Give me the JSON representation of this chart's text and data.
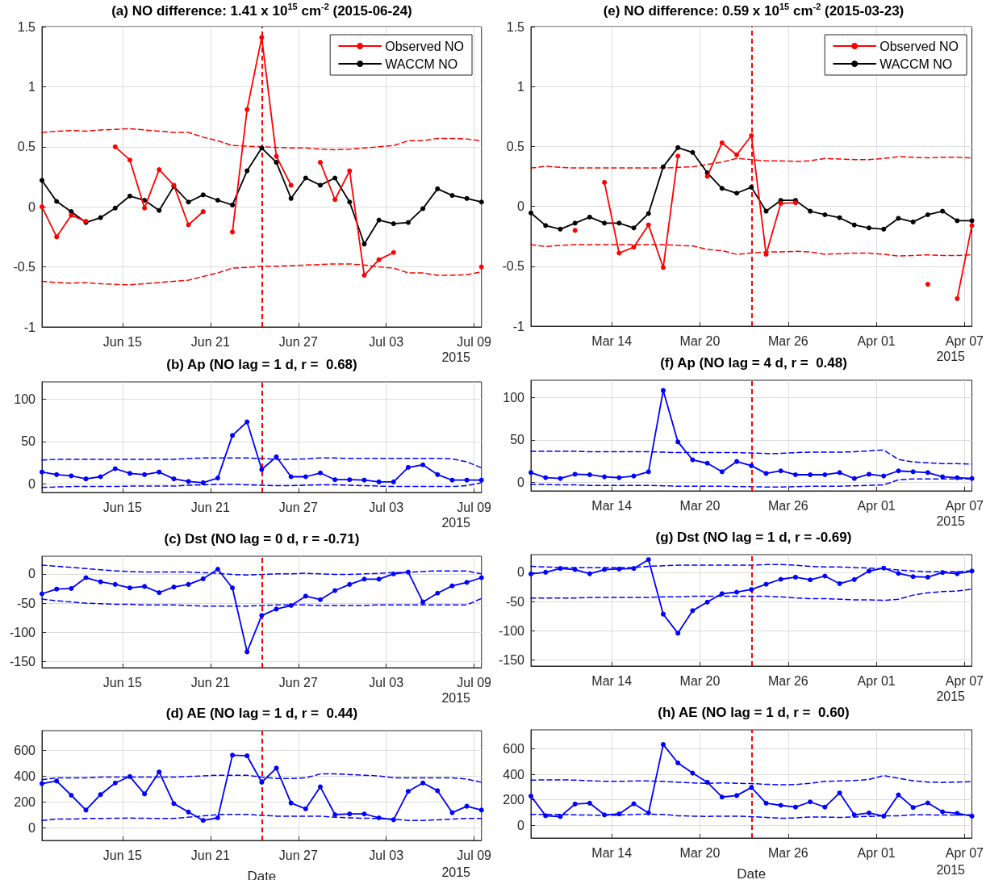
{
  "chart_data": [
    {
      "type": "line",
      "title": "(a) NO difference: 1.41 x 10$^{15}$ cm$^{-2}$ (2015-06-24)",
      "annotations": [
        "2015"
      ],
      "x": [
        "2015-06-09T12:00",
        "2015-06-10T12:00",
        "2015-06-11T12:00",
        "2015-06-12T12:00",
        "2015-06-13T12:00",
        "2015-06-14T12:00",
        "2015-06-15T12:00",
        "2015-06-16T12:00",
        "2015-06-17T12:00",
        "2015-06-18T12:00",
        "2015-06-19T12:00",
        "2015-06-20T12:00",
        "2015-06-21T12:00",
        "2015-06-22T12:00",
        "2015-06-23T12:00",
        "2015-06-24T12:00",
        "2015-06-25T12:00",
        "2015-06-26T12:00",
        "2015-06-27T12:00",
        "2015-06-28T12:00",
        "2015-06-29T12:00",
        "2015-06-30T12:00",
        "2015-07-01T12:00",
        "2015-07-02T12:00",
        "2015-07-03T12:00",
        "2015-07-04T12:00",
        "2015-07-05T12:00",
        "2015-07-06T12:00",
        "2015-07-07T12:00",
        "2015-07-08T12:00",
        "2015-07-09T12:00"
      ],
      "xlim": [
        "2015-06-09T12:00",
        "2015-07-09T12:00"
      ],
      "xticks": [
        {
          "value": "2015-06-15",
          "label": "Jun 15"
        },
        {
          "value": "2015-06-21",
          "label": "Jun 21"
        },
        {
          "value": "2015-06-27",
          "label": "Jun 27"
        },
        {
          "value": "2015-07-03",
          "label": "Jul 03"
        },
        {
          "value": "2015-07-09",
          "label": "Jul 09"
        }
      ],
      "ylim": [
        -1,
        1.5
      ],
      "yticks": [
        -1,
        -0.5,
        0,
        0.5,
        1,
        1.5
      ],
      "grid": true,
      "legend": "top right",
      "marker": "circle",
      "line_style": "solid",
      "ref_lines": [
        {
          "axis": "x",
          "value": "2015-06-24T12:00",
          "color": "#ff0000",
          "line_style": "dashed"
        }
      ],
      "series": [
        {
          "name": "Observed NO",
          "color": "#ff0000",
          "values": [
            0,
            -0.25,
            -0.07,
            -0.12,
            null,
            0.5,
            0.39,
            -0.01,
            0.31,
            0.18,
            -0.15,
            -0.04,
            null,
            -0.21,
            0.81,
            1.41,
            0.42,
            0.18,
            null,
            0.37,
            0.06,
            0.3,
            -0.57,
            -0.44,
            -0.38,
            null,
            null,
            null,
            null,
            null,
            -0.5
          ]
        },
        {
          "name": "WACCM NO",
          "color": "#000000",
          "values": [
            0.22,
            0.045,
            -0.04,
            -0.13,
            -0.09,
            -0.01,
            0.09,
            0.055,
            -0.03,
            0.17,
            0.04,
            0.1,
            0.055,
            0.015,
            0.3,
            0.49,
            0.37,
            0.07,
            0.24,
            0.18,
            0.24,
            0.04,
            -0.31,
            -0.11,
            -0.14,
            -0.13,
            -0.015,
            0.15,
            0.095,
            0.07,
            0.04
          ]
        },
        {
          "color": "#ff0000",
          "marker": "none",
          "line_style": "dashed",
          "values": [
            0.62,
            0.63,
            0.635,
            0.63,
            0.64,
            0.645,
            0.65,
            0.64,
            0.63,
            0.62,
            0.62,
            0.58,
            0.55,
            0.51,
            0.505,
            0.5,
            0.495,
            0.49,
            0.49,
            0.48,
            0.475,
            0.48,
            0.49,
            0.5,
            0.51,
            0.55,
            0.55,
            0.57,
            0.57,
            0.565,
            0.55
          ]
        },
        {
          "color": "#ff0000",
          "marker": "none",
          "line_style": "dashed",
          "values": [
            -0.62,
            -0.63,
            -0.635,
            -0.63,
            -0.64,
            -0.645,
            -0.65,
            -0.64,
            -0.63,
            -0.62,
            -0.61,
            -0.58,
            -0.55,
            -0.51,
            -0.505,
            -0.495,
            -0.495,
            -0.49,
            -0.485,
            -0.48,
            -0.475,
            -0.475,
            -0.485,
            -0.5,
            -0.51,
            -0.55,
            -0.55,
            -0.57,
            -0.57,
            -0.565,
            -0.54
          ]
        }
      ]
    },
    {
      "type": "line",
      "title": "(e) NO difference: 0.59 x 10$^{15}$ cm$^{-2}$ (2015-03-23)",
      "annotations": [
        "2015"
      ],
      "x": [
        "2015-03-08T12:00",
        "2015-03-09T12:00",
        "2015-03-10T12:00",
        "2015-03-11T12:00",
        "2015-03-12T12:00",
        "2015-03-13T12:00",
        "2015-03-14T12:00",
        "2015-03-15T12:00",
        "2015-03-16T12:00",
        "2015-03-17T12:00",
        "2015-03-18T12:00",
        "2015-03-19T12:00",
        "2015-03-20T12:00",
        "2015-03-21T12:00",
        "2015-03-22T12:00",
        "2015-03-23T12:00",
        "2015-03-24T12:00",
        "2015-03-25T12:00",
        "2015-03-26T12:00",
        "2015-03-27T12:00",
        "2015-03-28T12:00",
        "2015-03-29T12:00",
        "2015-03-30T12:00",
        "2015-03-31T12:00",
        "2015-04-01T12:00",
        "2015-04-02T12:00",
        "2015-04-03T12:00",
        "2015-04-04T12:00",
        "2015-04-05T12:00",
        "2015-04-06T12:00",
        "2015-04-07T12:00"
      ],
      "xlim": [
        "2015-03-08T12:00",
        "2015-04-07T12:00"
      ],
      "xticks": [
        {
          "value": "2015-03-14",
          "label": "Mar 14"
        },
        {
          "value": "2015-03-20",
          "label": "Mar 20"
        },
        {
          "value": "2015-03-26",
          "label": "Mar 26"
        },
        {
          "value": "2015-04-01",
          "label": "Apr 01"
        },
        {
          "value": "2015-04-07",
          "label": "Apr 07"
        }
      ],
      "ylim": [
        -1,
        1.5
      ],
      "yticks": [
        -1,
        -0.5,
        0,
        0.5,
        1,
        1.5
      ],
      "grid": true,
      "legend": "top right",
      "marker": "circle",
      "line_style": "solid",
      "ref_lines": [
        {
          "axis": "x",
          "value": "2015-03-23T12:00",
          "color": "#ff0000",
          "line_style": "dashed"
        }
      ],
      "series": [
        {
          "name": "Observed NO",
          "color": "#ff0000",
          "values": [
            null,
            null,
            null,
            -0.2,
            null,
            0.2,
            -0.39,
            -0.34,
            -0.155,
            -0.51,
            0.42,
            null,
            0.25,
            0.53,
            0.43,
            0.59,
            -0.4,
            0.025,
            0.03,
            null,
            null,
            null,
            null,
            null,
            null,
            null,
            null,
            -0.65,
            null,
            -0.77,
            -0.16
          ]
        },
        {
          "name": "WACCM NO",
          "color": "#000000",
          "values": [
            -0.055,
            -0.16,
            -0.19,
            -0.14,
            -0.09,
            -0.14,
            -0.14,
            -0.18,
            -0.06,
            0.33,
            0.49,
            0.45,
            0.28,
            0.15,
            0.11,
            0.16,
            -0.04,
            0.05,
            0.05,
            -0.04,
            -0.07,
            -0.095,
            -0.155,
            -0.18,
            -0.19,
            -0.1,
            -0.13,
            -0.07,
            -0.04,
            -0.12,
            -0.12
          ]
        },
        {
          "color": "#ff0000",
          "marker": "none",
          "line_style": "dashed",
          "values": [
            0.32,
            0.335,
            0.325,
            0.32,
            0.32,
            0.32,
            0.32,
            0.32,
            0.32,
            0.32,
            0.325,
            0.33,
            0.35,
            0.37,
            0.4,
            0.39,
            0.38,
            0.38,
            0.375,
            0.38,
            0.4,
            0.395,
            0.39,
            0.39,
            0.4,
            0.415,
            0.41,
            0.405,
            0.41,
            0.41,
            0.405
          ]
        },
        {
          "color": "#ff0000",
          "marker": "none",
          "line_style": "dashed",
          "values": [
            -0.32,
            -0.335,
            -0.325,
            -0.32,
            -0.32,
            -0.32,
            -0.32,
            -0.32,
            -0.32,
            -0.32,
            -0.325,
            -0.33,
            -0.36,
            -0.37,
            -0.4,
            -0.39,
            -0.38,
            -0.38,
            -0.375,
            -0.38,
            -0.4,
            -0.395,
            -0.39,
            -0.39,
            -0.4,
            -0.415,
            -0.41,
            -0.405,
            -0.41,
            -0.41,
            -0.405
          ]
        }
      ]
    },
    {
      "type": "line",
      "title": "(b) Ap (NO lag = 1 d, r =  0.68)",
      "annotations": [
        "2015"
      ],
      "x": [
        "2015-06-09T12:00",
        "2015-06-10T12:00",
        "2015-06-11T12:00",
        "2015-06-12T12:00",
        "2015-06-13T12:00",
        "2015-06-14T12:00",
        "2015-06-15T12:00",
        "2015-06-16T12:00",
        "2015-06-17T12:00",
        "2015-06-18T12:00",
        "2015-06-19T12:00",
        "2015-06-20T12:00",
        "2015-06-21T12:00",
        "2015-06-22T12:00",
        "2015-06-23T12:00",
        "2015-06-24T12:00",
        "2015-06-25T12:00",
        "2015-06-26T12:00",
        "2015-06-27T12:00",
        "2015-06-28T12:00",
        "2015-06-29T12:00",
        "2015-06-30T12:00",
        "2015-07-01T12:00",
        "2015-07-02T12:00",
        "2015-07-03T12:00",
        "2015-07-04T12:00",
        "2015-07-05T12:00",
        "2015-07-06T12:00",
        "2015-07-07T12:00",
        "2015-07-08T12:00",
        "2015-07-09T12:00"
      ],
      "xlim": [
        "2015-06-09T12:00",
        "2015-07-09T12:00"
      ],
      "xticks": [
        {
          "value": "2015-06-15",
          "label": "Jun 15"
        },
        {
          "value": "2015-06-21",
          "label": "Jun 21"
        },
        {
          "value": "2015-06-27",
          "label": "Jun 27"
        },
        {
          "value": "2015-07-03",
          "label": "Jul 03"
        },
        {
          "value": "2015-07-09",
          "label": "Jul 09"
        }
      ],
      "ylim": [
        -10,
        120
      ],
      "yticks": [
        0,
        50,
        100
      ],
      "grid": true,
      "marker": "circle",
      "line_style": "solid",
      "ref_lines": [
        {
          "axis": "x",
          "value": "2015-06-24T12:00",
          "color": "#ff0000",
          "line_style": "dashed"
        }
      ],
      "series": [
        {
          "color": "#0000ff",
          "values": [
            14,
            11,
            9.5,
            6,
            8.5,
            18,
            12.5,
            11,
            14,
            6,
            3,
            1.5,
            7,
            57,
            73,
            17,
            32,
            8.5,
            8.5,
            13,
            5,
            5,
            4.5,
            2.5,
            2.5,
            19.5,
            22.5,
            11,
            4.5,
            4.5,
            4.5
          ]
        },
        {
          "color": "#0000ff",
          "marker": "none",
          "line_style": "dashed",
          "values": [
            28,
            29,
            29,
            29,
            29,
            29,
            29,
            29,
            29,
            29,
            30,
            30.5,
            30.5,
            30.5,
            30.5,
            30,
            29,
            29,
            29.5,
            30.5,
            30.5,
            30,
            30,
            30,
            30,
            30,
            30,
            30,
            29.5,
            26,
            19
          ]
        },
        {
          "color": "#0000ff",
          "marker": "none",
          "line_style": "dashed",
          "values": [
            -4,
            -3.5,
            -3,
            -3,
            -3,
            -3,
            -2.5,
            -2.5,
            -2.5,
            -2.5,
            -1.5,
            -1,
            -0.5,
            -0.5,
            -1,
            -1.5,
            -2,
            -2,
            -1.5,
            -1,
            -1,
            -1.5,
            -2,
            -2.5,
            -3,
            -3,
            -3,
            -3,
            -3,
            -2,
            1.5
          ]
        }
      ]
    },
    {
      "type": "line",
      "title": "(f) Ap (NO lag = 4 d, r =  0.48)",
      "annotations": [
        "2015"
      ],
      "x": [
        "2015-03-08T12:00",
        "2015-03-09T12:00",
        "2015-03-10T12:00",
        "2015-03-11T12:00",
        "2015-03-12T12:00",
        "2015-03-13T12:00",
        "2015-03-14T12:00",
        "2015-03-15T12:00",
        "2015-03-16T12:00",
        "2015-03-17T12:00",
        "2015-03-18T12:00",
        "2015-03-19T12:00",
        "2015-03-20T12:00",
        "2015-03-21T12:00",
        "2015-03-22T12:00",
        "2015-03-23T12:00",
        "2015-03-24T12:00",
        "2015-03-25T12:00",
        "2015-03-26T12:00",
        "2015-03-27T12:00",
        "2015-03-28T12:00",
        "2015-03-29T12:00",
        "2015-03-30T12:00",
        "2015-03-31T12:00",
        "2015-04-01T12:00",
        "2015-04-02T12:00",
        "2015-04-03T12:00",
        "2015-04-04T12:00",
        "2015-04-05T12:00",
        "2015-04-06T12:00",
        "2015-04-07T12:00"
      ],
      "xlim": [
        "2015-03-08T12:00",
        "2015-04-07T12:00"
      ],
      "xticks": [
        {
          "value": "2015-03-14",
          "label": "Mar 14"
        },
        {
          "value": "2015-03-20",
          "label": "Mar 20"
        },
        {
          "value": "2015-03-26",
          "label": "Mar 26"
        },
        {
          "value": "2015-04-01",
          "label": "Apr 01"
        },
        {
          "value": "2015-04-07",
          "label": "Apr 07"
        }
      ],
      "ylim": [
        -10,
        120
      ],
      "yticks": [
        0,
        50,
        100
      ],
      "grid": true,
      "marker": "circle",
      "line_style": "solid",
      "ref_lines": [
        {
          "axis": "x",
          "value": "2015-03-23T12:00",
          "color": "#ff0000",
          "line_style": "dashed"
        }
      ],
      "series": [
        {
          "color": "#0000ff",
          "values": [
            11.5,
            5.5,
            4.5,
            9.5,
            9,
            6.5,
            5.5,
            7.5,
            12.5,
            108,
            47.5,
            26.5,
            22.5,
            12.5,
            24.5,
            19.5,
            10.5,
            13.5,
            9,
            9,
            9,
            11.5,
            4.5,
            9.5,
            7.5,
            13.5,
            12.5,
            11.5,
            6.5,
            5.5,
            4.5
          ]
        },
        {
          "color": "#0000ff",
          "marker": "none",
          "line_style": "dashed",
          "values": [
            36.5,
            36.5,
            36.5,
            36.5,
            36,
            36,
            36,
            36,
            36,
            35.5,
            35,
            35,
            35,
            35,
            35,
            34.5,
            34,
            34,
            35,
            35.5,
            35.5,
            35.5,
            36,
            37,
            38,
            27,
            24,
            23,
            22,
            22,
            21.5
          ]
        },
        {
          "color": "#0000ff",
          "marker": "none",
          "line_style": "dashed",
          "values": [
            -2.5,
            -2.5,
            -3,
            -3,
            -3.5,
            -3.5,
            -3.5,
            -3.5,
            -3.5,
            -4,
            -4.5,
            -4.5,
            -4.5,
            -4.5,
            -5,
            -5,
            -5.5,
            -5.5,
            -5,
            -4.5,
            -4.5,
            -4.5,
            -4,
            -3.5,
            -3,
            3,
            4,
            4,
            4,
            4,
            4
          ]
        }
      ]
    },
    {
      "type": "line",
      "title": "(c) Dst (NO lag = 0 d, r = -0.71)",
      "annotations": [
        "2015"
      ],
      "x": [
        "2015-06-09T12:00",
        "2015-06-10T12:00",
        "2015-06-11T12:00",
        "2015-06-12T12:00",
        "2015-06-13T12:00",
        "2015-06-14T12:00",
        "2015-06-15T12:00",
        "2015-06-16T12:00",
        "2015-06-17T12:00",
        "2015-06-18T12:00",
        "2015-06-19T12:00",
        "2015-06-20T12:00",
        "2015-06-21T12:00",
        "2015-06-22T12:00",
        "2015-06-23T12:00",
        "2015-06-24T12:00",
        "2015-06-25T12:00",
        "2015-06-26T12:00",
        "2015-06-27T12:00",
        "2015-06-28T12:00",
        "2015-06-29T12:00",
        "2015-06-30T12:00",
        "2015-07-01T12:00",
        "2015-07-02T12:00",
        "2015-07-03T12:00",
        "2015-07-04T12:00",
        "2015-07-05T12:00",
        "2015-07-06T12:00",
        "2015-07-07T12:00",
        "2015-07-08T12:00",
        "2015-07-09T12:00"
      ],
      "xlim": [
        "2015-06-09T12:00",
        "2015-07-09T12:00"
      ],
      "xticks": [
        {
          "value": "2015-06-15",
          "label": "Jun 15"
        },
        {
          "value": "2015-06-21",
          "label": "Jun 21"
        },
        {
          "value": "2015-06-27",
          "label": "Jun 27"
        },
        {
          "value": "2015-07-03",
          "label": "Jul 03"
        },
        {
          "value": "2015-07-09",
          "label": "Jul 09"
        }
      ],
      "ylim": [
        -160,
        30
      ],
      "yticks": [
        -150,
        -100,
        -50,
        0
      ],
      "grid": true,
      "marker": "circle",
      "line_style": "solid",
      "ref_lines": [
        {
          "axis": "x",
          "value": "2015-06-24T12:00",
          "color": "#ff0000",
          "line_style": "dashed"
        }
      ],
      "series": [
        {
          "color": "#0000ff",
          "values": [
            -34,
            -26,
            -25,
            -6.5,
            -13.5,
            -18,
            -24,
            -21.5,
            -32,
            -22.5,
            -18,
            -8.5,
            8,
            -24,
            -133,
            -71,
            -60,
            -54,
            -38,
            -44,
            -28.5,
            -18,
            -9,
            -9,
            0,
            3,
            -48,
            -33,
            -20.5,
            -14.5,
            -6.5
          ]
        },
        {
          "color": "#0000ff",
          "marker": "none",
          "line_style": "dashed",
          "values": [
            15,
            13,
            11,
            9,
            7,
            5,
            4,
            3,
            3,
            3,
            3,
            2,
            1,
            -1,
            -2,
            -1,
            0,
            0,
            1,
            0,
            -1,
            -1,
            0,
            1,
            2,
            3,
            4,
            5,
            5,
            5,
            0
          ]
        },
        {
          "color": "#0000ff",
          "marker": "none",
          "line_style": "dashed",
          "values": [
            -43,
            -46,
            -48,
            -50,
            -51,
            -52,
            -52,
            -53,
            -53,
            -53,
            -54,
            -55,
            -55,
            -55,
            -55,
            -54,
            -53,
            -53,
            -53,
            -54,
            -54,
            -54,
            -54,
            -53,
            -53,
            -53,
            -53,
            -53,
            -53,
            -53,
            -42
          ]
        }
      ]
    },
    {
      "type": "line",
      "title": "(g) Dst (NO lag = 1 d, r = -0.69)",
      "annotations": [
        "2015"
      ],
      "x": [
        "2015-03-08T12:00",
        "2015-03-09T12:00",
        "2015-03-10T12:00",
        "2015-03-11T12:00",
        "2015-03-12T12:00",
        "2015-03-13T12:00",
        "2015-03-14T12:00",
        "2015-03-15T12:00",
        "2015-03-16T12:00",
        "2015-03-17T12:00",
        "2015-03-18T12:00",
        "2015-03-19T12:00",
        "2015-03-20T12:00",
        "2015-03-21T12:00",
        "2015-03-22T12:00",
        "2015-03-23T12:00",
        "2015-03-24T12:00",
        "2015-03-25T12:00",
        "2015-03-26T12:00",
        "2015-03-27T12:00",
        "2015-03-28T12:00",
        "2015-03-29T12:00",
        "2015-03-30T12:00",
        "2015-03-31T12:00",
        "2015-04-01T12:00",
        "2015-04-02T12:00",
        "2015-04-03T12:00",
        "2015-04-04T12:00",
        "2015-04-05T12:00",
        "2015-04-06T12:00",
        "2015-04-07T12:00"
      ],
      "xlim": [
        "2015-03-08T12:00",
        "2015-04-07T12:00"
      ],
      "xticks": [
        {
          "value": "2015-03-14",
          "label": "Mar 14"
        },
        {
          "value": "2015-03-20",
          "label": "Mar 20"
        },
        {
          "value": "2015-03-26",
          "label": "Mar 26"
        },
        {
          "value": "2015-04-01",
          "label": "Apr 01"
        },
        {
          "value": "2015-04-07",
          "label": "Apr 07"
        }
      ],
      "ylim": [
        -160,
        30
      ],
      "yticks": [
        -150,
        -100,
        -50,
        0
      ],
      "grid": true,
      "marker": "circle",
      "line_style": "solid",
      "ref_lines": [
        {
          "axis": "x",
          "value": "2015-03-23T12:00",
          "color": "#ff0000",
          "line_style": "dashed"
        }
      ],
      "series": [
        {
          "color": "#0000ff",
          "values": [
            -3,
            0,
            6.5,
            4.5,
            -2.5,
            4.5,
            5.5,
            6.5,
            21.5,
            -71.5,
            -104,
            -65.5,
            -51,
            -36.5,
            -34,
            -29.5,
            -20.5,
            -12,
            -8.5,
            -13,
            -6.5,
            -19.5,
            -12.5,
            2,
            7,
            -2,
            -7.5,
            -8.5,
            -0.5,
            -2.5,
            2
          ]
        },
        {
          "color": "#0000ff",
          "marker": "none",
          "line_style": "dashed",
          "values": [
            10,
            9,
            8,
            8,
            8,
            8,
            8,
            8,
            10,
            11,
            12,
            12,
            12,
            12,
            12,
            12,
            13,
            13,
            12,
            10,
            9,
            9,
            8,
            7,
            6,
            4,
            2,
            1,
            1,
            1,
            2.5
          ]
        },
        {
          "color": "#0000ff",
          "marker": "none",
          "line_style": "dashed",
          "values": [
            -44,
            -44,
            -44,
            -44,
            -43,
            -43,
            -43,
            -43,
            -43,
            -42,
            -42,
            -41,
            -41,
            -41,
            -41,
            -41,
            -41,
            -42,
            -44,
            -45,
            -45,
            -46,
            -47,
            -47,
            -48,
            -46,
            -39,
            -35,
            -33,
            -32,
            -29
          ]
        }
      ]
    },
    {
      "type": "line",
      "title": "(d) AE (NO lag = 1 d, r =  0.44)",
      "xlabel": "Date",
      "annotations": [
        "2015"
      ],
      "x": [
        "2015-06-09T12:00",
        "2015-06-10T12:00",
        "2015-06-11T12:00",
        "2015-06-12T12:00",
        "2015-06-13T12:00",
        "2015-06-14T12:00",
        "2015-06-15T12:00",
        "2015-06-16T12:00",
        "2015-06-17T12:00",
        "2015-06-18T12:00",
        "2015-06-19T12:00",
        "2015-06-20T12:00",
        "2015-06-21T12:00",
        "2015-06-22T12:00",
        "2015-06-23T12:00",
        "2015-06-24T12:00",
        "2015-06-25T12:00",
        "2015-06-26T12:00",
        "2015-06-27T12:00",
        "2015-06-28T12:00",
        "2015-06-29T12:00",
        "2015-06-30T12:00",
        "2015-07-01T12:00",
        "2015-07-02T12:00",
        "2015-07-03T12:00",
        "2015-07-04T12:00",
        "2015-07-05T12:00",
        "2015-07-06T12:00",
        "2015-07-07T12:00",
        "2015-07-08T12:00",
        "2015-07-09T12:00"
      ],
      "xlim": [
        "2015-06-09T12:00",
        "2015-07-09T12:00"
      ],
      "xticks": [
        {
          "value": "2015-06-15",
          "label": "Jun 15"
        },
        {
          "value": "2015-06-21",
          "label": "Jun 21"
        },
        {
          "value": "2015-06-27",
          "label": "Jun 27"
        },
        {
          "value": "2015-07-03",
          "label": "Jul 03"
        },
        {
          "value": "2015-07-09",
          "label": "Jul 09"
        }
      ],
      "ylim": [
        -100,
        750
      ],
      "yticks": [
        0,
        200,
        400,
        600
      ],
      "grid": true,
      "marker": "circle",
      "line_style": "solid",
      "ref_lines": [
        {
          "axis": "x",
          "value": "2015-06-24T12:00",
          "color": "#ff0000",
          "line_style": "dashed"
        }
      ],
      "series": [
        {
          "color": "#0000ff",
          "values": [
            340,
            360,
            250,
            135,
            255,
            345,
            395,
            260,
            430,
            185,
            120,
            55,
            75,
            560,
            555,
            350,
            460,
            190,
            145,
            315,
            100,
            105,
            105,
            75,
            60,
            280,
            345,
            285,
            115,
            165,
            135
          ]
        },
        {
          "color": "#0000ff",
          "marker": "none",
          "line_style": "dashed",
          "values": [
            370,
            385,
            385,
            385,
            390,
            390,
            390,
            390,
            390,
            390,
            395,
            400,
            405,
            405,
            405,
            390,
            380,
            380,
            385,
            415,
            415,
            410,
            405,
            400,
            385,
            385,
            385,
            385,
            385,
            375,
            350
          ]
        },
        {
          "color": "#0000ff",
          "marker": "none",
          "line_style": "dashed",
          "values": [
            55,
            65,
            65,
            70,
            70,
            72,
            73,
            72,
            70,
            70,
            80,
            90,
            100,
            102,
            102,
            95,
            88,
            88,
            88,
            88,
            80,
            75,
            72,
            70,
            65,
            55,
            55,
            60,
            65,
            70,
            70
          ]
        }
      ]
    },
    {
      "type": "line",
      "title": "(h) AE (NO lag = 1 d, r =  0.60)",
      "xlabel": "Date",
      "annotations": [
        "2015"
      ],
      "x": [
        "2015-03-08T12:00",
        "2015-03-09T12:00",
        "2015-03-10T12:00",
        "2015-03-11T12:00",
        "2015-03-12T12:00",
        "2015-03-13T12:00",
        "2015-03-14T12:00",
        "2015-03-15T12:00",
        "2015-03-16T12:00",
        "2015-03-17T12:00",
        "2015-03-18T12:00",
        "2015-03-19T12:00",
        "2015-03-20T12:00",
        "2015-03-21T12:00",
        "2015-03-22T12:00",
        "2015-03-23T12:00",
        "2015-03-24T12:00",
        "2015-03-25T12:00",
        "2015-03-26T12:00",
        "2015-03-27T12:00",
        "2015-03-28T12:00",
        "2015-03-29T12:00",
        "2015-03-30T12:00",
        "2015-03-31T12:00",
        "2015-04-01T12:00",
        "2015-04-02T12:00",
        "2015-04-03T12:00",
        "2015-04-04T12:00",
        "2015-04-05T12:00",
        "2015-04-06T12:00",
        "2015-04-07T12:00"
      ],
      "xlim": [
        "2015-03-08T12:00",
        "2015-04-07T12:00"
      ],
      "xticks": [
        {
          "value": "2015-03-14",
          "label": "Mar 14"
        },
        {
          "value": "2015-03-20",
          "label": "Mar 20"
        },
        {
          "value": "2015-03-26",
          "label": "Mar 26"
        },
        {
          "value": "2015-04-01",
          "label": "Apr 01"
        },
        {
          "value": "2015-04-07",
          "label": "Apr 07"
        }
      ],
      "ylim": [
        -100,
        750
      ],
      "yticks": [
        0,
        200,
        400,
        600
      ],
      "grid": true,
      "marker": "circle",
      "line_style": "solid",
      "ref_lines": [
        {
          "axis": "x",
          "value": "2015-03-23T12:00",
          "color": "#ff0000",
          "line_style": "dashed"
        }
      ],
      "series": [
        {
          "color": "#0000ff",
          "values": [
            230,
            75,
            68,
            167,
            174,
            82,
            89,
            169,
            97,
            635,
            490,
            410,
            338,
            222,
            234,
            297,
            174,
            157,
            143,
            184,
            143,
            254,
            82,
            97,
            72,
            239,
            140,
            176,
            106,
            94,
            72
          ]
        },
        {
          "color": "#0000ff",
          "marker": "none",
          "line_style": "dashed",
          "values": [
            355,
            357,
            357,
            355,
            350,
            345,
            345,
            348,
            348,
            345,
            338,
            333,
            330,
            333,
            330,
            328,
            322,
            318,
            320,
            330,
            345,
            348,
            352,
            360,
            391,
            370,
            350,
            340,
            336,
            340,
            342
          ]
        },
        {
          "color": "#0000ff",
          "marker": "none",
          "line_style": "dashed",
          "values": [
            85,
            85,
            85,
            82,
            80,
            78,
            80,
            85,
            88,
            85,
            75,
            72,
            70,
            72,
            72,
            68,
            62,
            55,
            58,
            65,
            65,
            62,
            65,
            70,
            75,
            75,
            82,
            82,
            80,
            80,
            82
          ]
        }
      ]
    }
  ]
}
